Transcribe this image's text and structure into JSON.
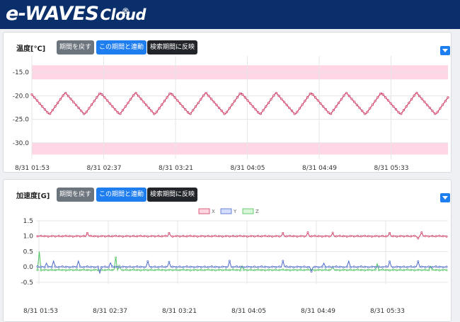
{
  "header": {
    "logo_text": "e-WAVES",
    "logo_reg": "®",
    "logo_cloud": "Cloud",
    "bg_color": "#0b2f6b"
  },
  "buttons": {
    "back": "期間を戻す",
    "sync": "この期間と連動",
    "reflect": "検索期間に反映"
  },
  "temp_panel": {
    "title": "温度[℃]"
  },
  "accel_panel": {
    "title": "加速度[G]"
  },
  "chart_data": [
    {
      "type": "line",
      "title": "温度[℃]",
      "xlabel": "",
      "ylabel": "",
      "ylim": [
        -33.5,
        -11.5
      ],
      "yticks": [
        "-15.0",
        "-20.0",
        "-25.0",
        "-30.0"
      ],
      "ytick_values": [
        -15,
        -20,
        -25,
        -30
      ],
      "xticks": [
        "8/31 01:53",
        "8/31 02:37",
        "8/31 03:21",
        "8/31 04:05",
        "8/31 04:49",
        "8/31 05:33"
      ],
      "bands": [
        [
          -16.5,
          -13.5
        ],
        [
          -32.5,
          -30.0
        ]
      ],
      "band_color": "#ffd6e5",
      "series": [
        {
          "color": "#d03a63",
          "cycles": 12,
          "period_minutes": 22.3,
          "min": -24.0,
          "max": -19.3,
          "start_time": "8/31 01:53",
          "start_value": -20.0,
          "end_value": -20.8
        }
      ]
    },
    {
      "type": "line",
      "title": "加速度[G]",
      "xlabel": "",
      "ylabel": "",
      "ylim": [
        -0.55,
        1.5
      ],
      "yticks": [
        "1.5",
        "1.0",
        "0.5",
        "0.0",
        "-0.5"
      ],
      "ytick_values": [
        1.5,
        1.0,
        0.5,
        0.0,
        -0.5
      ],
      "xticks": [
        "8/31 01:53",
        "8/31 02:37",
        "8/31 03:21",
        "8/31 04:05",
        "8/31 04:49",
        "8/31 05:33"
      ],
      "legend_position": "top-center",
      "series": [
        {
          "name": "X",
          "color": "#d03a63",
          "fill": "#ffd6e0",
          "base": 1.0,
          "spikes": [
            [
              0.12,
              1.1
            ],
            [
              0.32,
              1.1
            ],
            [
              0.6,
              1.1
            ],
            [
              0.66,
              1.12
            ],
            [
              0.72,
              1.11
            ],
            [
              0.86,
              1.1
            ],
            [
              0.94,
              1.12
            ],
            [
              0.93,
              0.93
            ]
          ]
        },
        {
          "name": "Y",
          "color": "#4a68c8",
          "fill": "#d6deff",
          "base": 0.0,
          "spikes": [
            [
              0.02,
              0.12
            ],
            [
              0.04,
              0.19
            ],
            [
              0.1,
              0.19
            ],
            [
              0.15,
              -0.2
            ],
            [
              0.18,
              0.13
            ],
            [
              0.27,
              0.18
            ],
            [
              0.32,
              0.16
            ],
            [
              0.47,
              0.19
            ],
            [
              0.6,
              0.19
            ],
            [
              0.67,
              -0.15
            ],
            [
              0.7,
              0.12
            ],
            [
              0.76,
              0.19
            ],
            [
              0.86,
              0.17
            ],
            [
              0.93,
              0.18
            ]
          ]
        },
        {
          "name": "Z",
          "color": "#4cc05a",
          "fill": "#d8f5d8",
          "base": -0.1,
          "spikes": [
            [
              0.005,
              0.5
            ],
            [
              0.19,
              0.3
            ],
            [
              0.2,
              0.03
            ],
            [
              0.5,
              0.03
            ],
            [
              0.72,
              0.0
            ],
            [
              0.83,
              0.1
            ],
            [
              0.96,
              0.02
            ]
          ]
        }
      ]
    }
  ]
}
